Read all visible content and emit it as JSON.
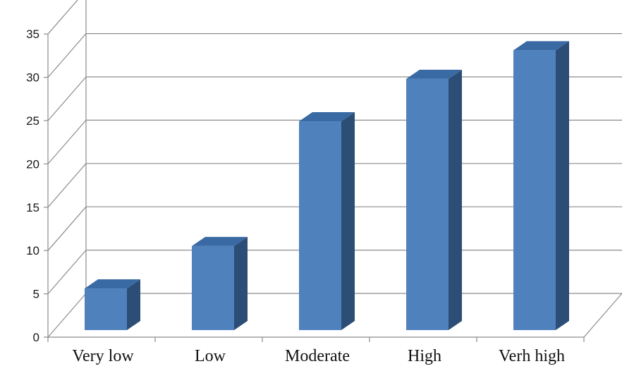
{
  "chart_data": {
    "type": "bar",
    "title": "",
    "xlabel": "",
    "ylabel": "",
    "categories": [
      "Very low",
      "Low",
      "Moderate",
      "High",
      "Verh high"
    ],
    "values": [
      4.8,
      9.7,
      24.1,
      29,
      32.3
    ],
    "ylim": [
      0,
      35
    ],
    "yticks": [
      "0",
      "5",
      "10",
      "15",
      "20",
      "25",
      "30",
      "35"
    ],
    "grid": true,
    "legend": "none",
    "three_d": true,
    "colors": {
      "bar_front": "#4f81bd",
      "bar_side": "#2c4d75",
      "bar_top": "#3a6aa3",
      "grid": "#8c8c8c"
    }
  }
}
